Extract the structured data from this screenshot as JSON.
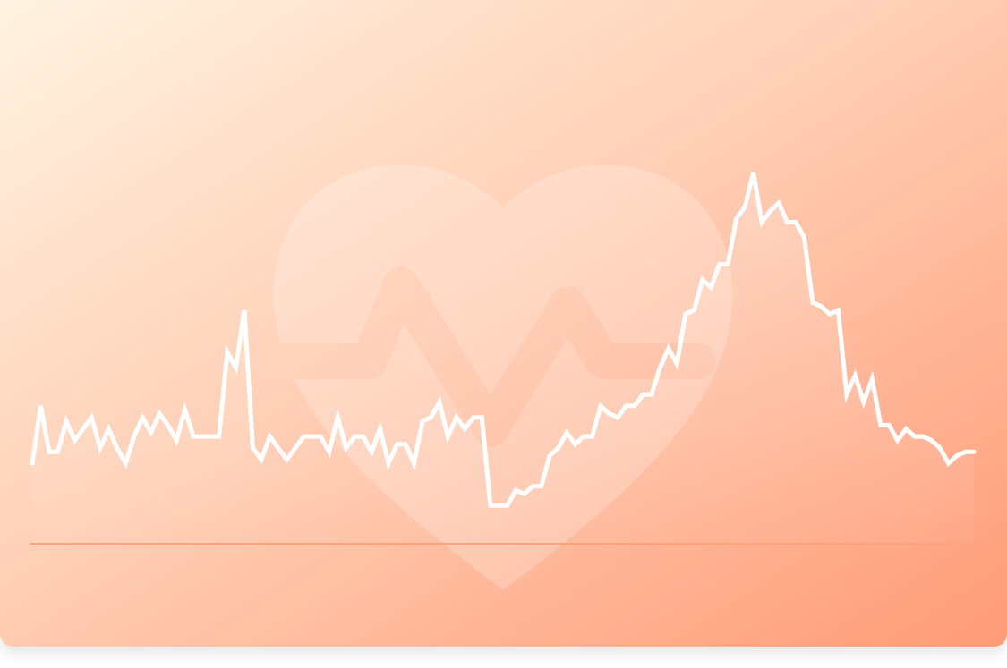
{
  "colors": {
    "gradient_start": "#fff3e2",
    "gradient_mid": "#ffcdb3",
    "gradient_end": "#ff9b77",
    "line": "#ffffff",
    "baseline": "#ff9f78"
  },
  "icons": {
    "watermark": "heart-pulse-icon"
  },
  "chart_data": {
    "type": "area",
    "title": "",
    "xlabel": "",
    "ylabel": "",
    "grid": false,
    "legend": "none",
    "ylim": [
      0,
      100
    ],
    "series": [
      {
        "values": [
          21,
          36,
          24,
          24,
          32,
          27,
          30,
          33,
          25,
          30,
          25,
          21,
          28,
          33,
          29,
          34,
          31,
          27,
          35,
          28,
          28,
          28,
          28,
          50,
          46,
          61,
          25,
          22,
          28,
          25,
          22,
          25,
          28,
          28,
          28,
          24,
          33,
          25,
          28,
          28,
          24,
          30,
          21,
          26,
          26,
          21,
          32,
          33,
          37,
          28,
          33,
          30,
          33,
          33,
          10,
          10,
          10,
          14,
          13,
          15,
          15,
          23,
          25,
          29,
          26,
          28,
          28,
          36,
          34,
          33,
          36,
          36,
          39,
          39,
          46,
          51,
          47,
          60,
          61,
          69,
          67,
          73,
          73,
          85,
          88,
          97,
          84,
          87,
          89,
          84,
          84,
          80,
          63,
          62,
          60,
          61,
          39,
          44,
          37,
          43,
          31,
          31,
          27,
          30,
          28,
          28,
          27,
          25,
          21,
          23,
          24,
          24
        ]
      }
    ]
  }
}
